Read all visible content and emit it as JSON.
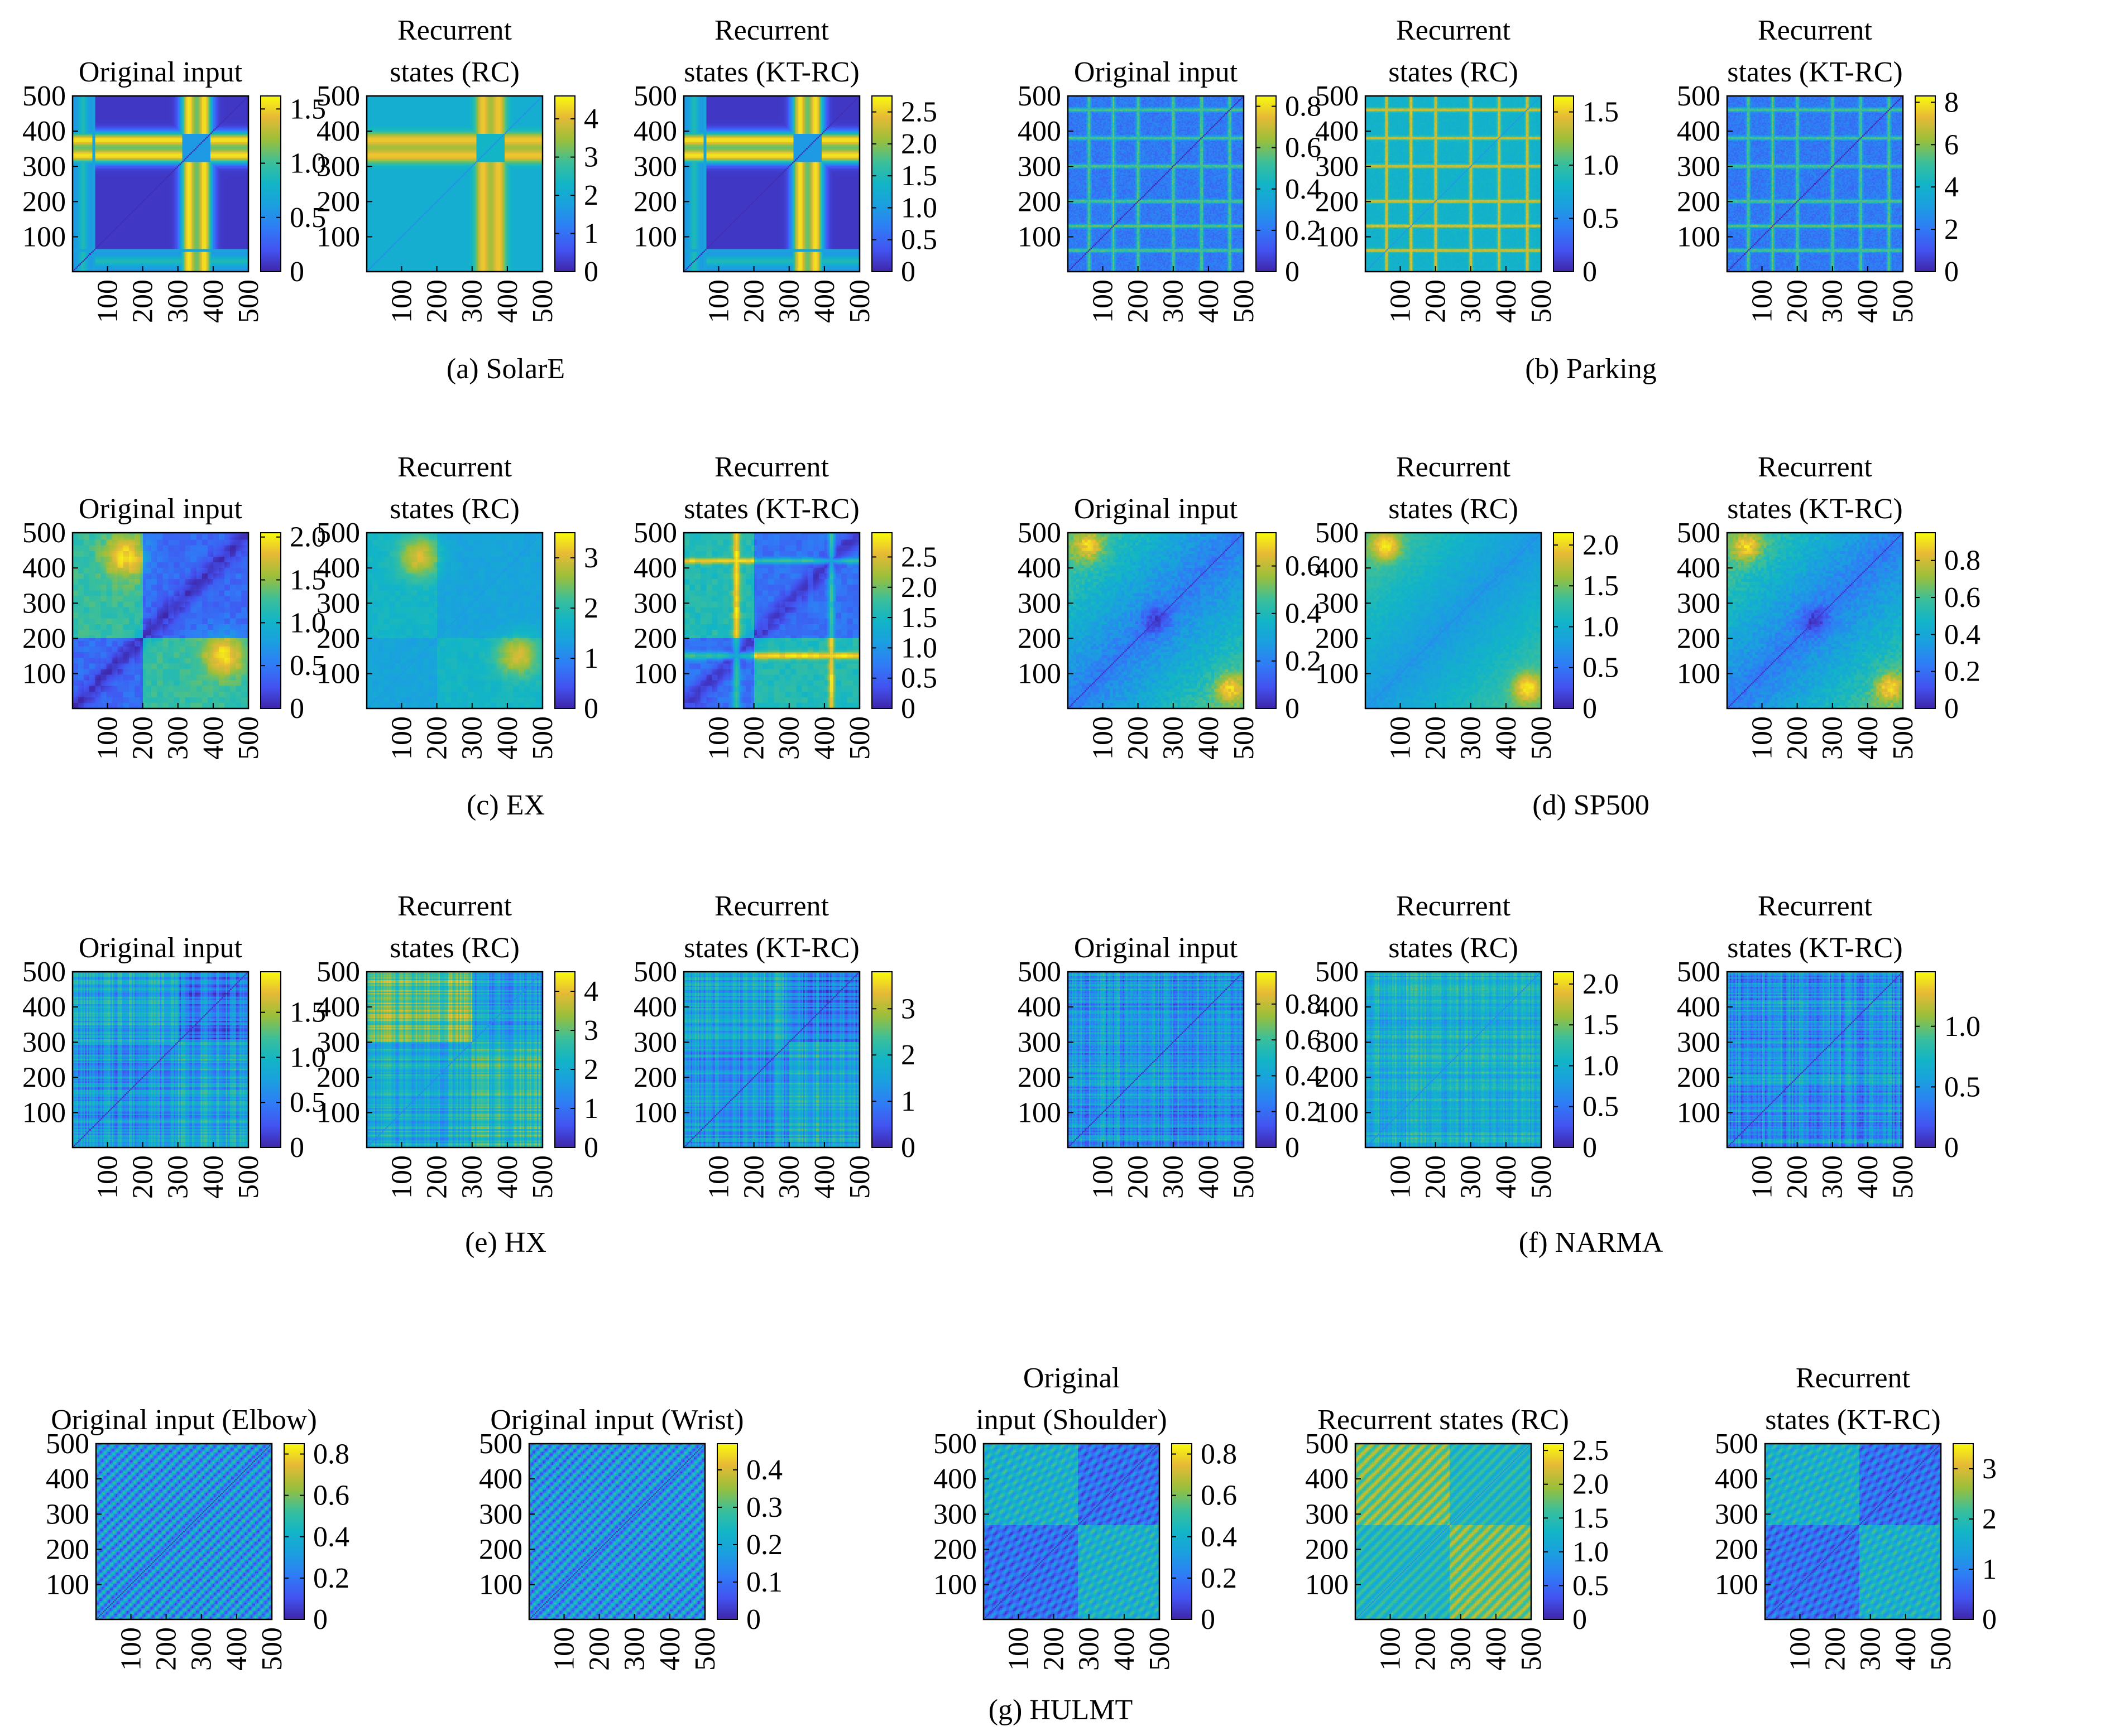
{
  "chart_data": {
    "type": "heatmap",
    "figure": "recurrence-plot-grid",
    "axis_ticks": [
      100,
      200,
      300,
      400,
      500
    ],
    "axis_range": [
      1,
      500
    ],
    "colormap": "parula",
    "groups": [
      {
        "caption": "(a) SolarE",
        "panels": [
          {
            "title_lines": [
              "Original input"
            ],
            "cbar_ticks": [
              "0",
              "0.5",
              "1.0",
              "1.5"
            ],
            "cbar_range": [
              0,
              1.62
            ],
            "pattern": "cross_low",
            "bands": [
              60,
              330,
              370
            ]
          },
          {
            "title_lines": [
              "Recurrent",
              "states (RC)"
            ],
            "cbar_ticks": [
              "0",
              "1",
              "2",
              "3",
              "4"
            ],
            "cbar_range": [
              0,
              4.6
            ],
            "pattern": "cross_mid",
            "bands": [
              60,
              330,
              370
            ]
          },
          {
            "title_lines": [
              "Recurrent",
              "states (KT-RC)"
            ],
            "cbar_ticks": [
              "0",
              "0.5",
              "1.0",
              "1.5",
              "2.0",
              "2.5"
            ],
            "cbar_range": [
              0,
              2.75
            ],
            "pattern": "cross_low",
            "bands": [
              60,
              330,
              370
            ]
          }
        ]
      },
      {
        "caption": "(b) Parking",
        "panels": [
          {
            "title_lines": [
              "Original input"
            ],
            "cbar_ticks": [
              "0",
              "0.2",
              "0.4",
              "0.6",
              "0.8"
            ],
            "cbar_range": [
              0,
              0.85
            ],
            "pattern": "grid_blue",
            "bands": [
              60,
              130,
              200,
              300,
              380,
              460
            ]
          },
          {
            "title_lines": [
              "Recurrent",
              "states (RC)"
            ],
            "cbar_ticks": [
              "0",
              "0.5",
              "1.0",
              "1.5"
            ],
            "cbar_range": [
              0,
              1.65
            ],
            "pattern": "grid_lines",
            "bands": [
              60,
              130,
              200,
              300,
              380,
              460
            ]
          },
          {
            "title_lines": [
              "Recurrent",
              "states (KT-RC)"
            ],
            "cbar_ticks": [
              "0",
              "2",
              "4",
              "6",
              "8"
            ],
            "cbar_range": [
              0,
              8.3
            ],
            "pattern": "grid_blue",
            "bands": [
              60,
              130,
              200,
              300,
              380,
              460
            ]
          }
        ]
      },
      {
        "caption": "(c) EX",
        "panels": [
          {
            "title_lines": [
              "Original input"
            ],
            "cbar_ticks": [
              "0",
              "0.5",
              "1.0",
              "1.5",
              "2.0"
            ],
            "cbar_range": [
              0,
              2.05
            ],
            "pattern": "smooth_block",
            "bands": [
              150
            ]
          },
          {
            "title_lines": [
              "Recurrent",
              "states (RC)"
            ],
            "cbar_ticks": [
              "0",
              "1",
              "2",
              "3"
            ],
            "cbar_range": [
              0,
              3.5
            ],
            "pattern": "smooth_soft",
            "bands": [
              150
            ]
          },
          {
            "title_lines": [
              "Recurrent",
              "states (KT-RC)"
            ],
            "cbar_ticks": [
              "0",
              "0.5",
              "1.0",
              "1.5",
              "2.0",
              "2.5"
            ],
            "cbar_range": [
              0,
              2.9
            ],
            "pattern": "smooth_lines",
            "bands": [
              150
            ]
          }
        ]
      },
      {
        "caption": "(d) SP500",
        "panels": [
          {
            "title_lines": [
              "Original input"
            ],
            "cbar_ticks": [
              "0",
              "0.2",
              "0.4",
              "0.6"
            ],
            "cbar_range": [
              0,
              0.74
            ],
            "pattern": "corner_texture",
            "bands": [
              200,
              300
            ]
          },
          {
            "title_lines": [
              "Recurrent",
              "states (RC)"
            ],
            "cbar_ticks": [
              "0",
              "0.5",
              "1.0",
              "1.5",
              "2.0"
            ],
            "cbar_range": [
              0,
              2.15
            ],
            "pattern": "corner_soft",
            "bands": [
              200,
              300
            ]
          },
          {
            "title_lines": [
              "Recurrent",
              "states (KT-RC)"
            ],
            "cbar_ticks": [
              "0",
              "0.2",
              "0.4",
              "0.6",
              "0.8"
            ],
            "cbar_range": [
              0,
              0.95
            ],
            "pattern": "corner_texture",
            "bands": [
              200,
              300
            ]
          }
        ]
      },
      {
        "caption": "(e) HX",
        "panels": [
          {
            "title_lines": [
              "Original input"
            ],
            "cbar_ticks": [
              "0",
              "0.5",
              "1.0",
              "1.5"
            ],
            "cbar_range": [
              0,
              1.95
            ],
            "pattern": "noise_blocks",
            "bands": [
              300
            ]
          },
          {
            "title_lines": [
              "Recurrent",
              "states (RC)"
            ],
            "cbar_ticks": [
              "0",
              "1",
              "2",
              "3",
              "4"
            ],
            "cbar_range": [
              0,
              4.5
            ],
            "pattern": "noise_blocks_bright",
            "bands": [
              300
            ]
          },
          {
            "title_lines": [
              "Recurrent",
              "states (KT-RC)"
            ],
            "cbar_ticks": [
              "0",
              "1",
              "2",
              "3"
            ],
            "cbar_range": [
              0,
              3.8
            ],
            "pattern": "noise_blocks",
            "bands": [
              300
            ]
          }
        ]
      },
      {
        "caption": "(f) NARMA",
        "panels": [
          {
            "title_lines": [
              "Original input"
            ],
            "cbar_ticks": [
              "0",
              "0.2",
              "0.4",
              "0.6",
              "0.8"
            ],
            "cbar_range": [
              0,
              0.98
            ],
            "pattern": "noise_fine",
            "bands": []
          },
          {
            "title_lines": [
              "Recurrent",
              "states (RC)"
            ],
            "cbar_ticks": [
              "0",
              "0.5",
              "1.0",
              "1.5",
              "2.0"
            ],
            "cbar_range": [
              0,
              2.15
            ],
            "pattern": "noise_fine_mid",
            "bands": []
          },
          {
            "title_lines": [
              "Recurrent",
              "states (KT-RC)"
            ],
            "cbar_ticks": [
              "0",
              "0.5",
              "1.0"
            ],
            "cbar_range": [
              0,
              1.45
            ],
            "pattern": "noise_fine",
            "bands": []
          }
        ]
      },
      {
        "caption": "(g) HULMT",
        "panels": [
          {
            "title_lines": [
              "Original input (Elbow)"
            ],
            "cbar_ticks": [
              "0",
              "0.2",
              "0.4",
              "0.6",
              "0.8"
            ],
            "cbar_range": [
              0,
              0.85
            ],
            "pattern": "periodic",
            "bands": []
          },
          {
            "title_lines": [
              "Original input (Wrist)"
            ],
            "cbar_ticks": [
              "0",
              "0.1",
              "0.2",
              "0.3",
              "0.4"
            ],
            "cbar_range": [
              0,
              0.47
            ],
            "pattern": "periodic",
            "bands": []
          },
          {
            "title_lines": [
              "Original",
              "input (Shoulder)"
            ],
            "cbar_ticks": [
              "0",
              "0.2",
              "0.4",
              "0.6",
              "0.8"
            ],
            "cbar_range": [
              0,
              0.85
            ],
            "pattern": "periodic_blocks",
            "bands": [
              270
            ]
          },
          {
            "title_lines": [
              "Recurrent states (RC)"
            ],
            "cbar_ticks": [
              "0",
              "0.5",
              "1.0",
              "1.5",
              "2.0",
              "2.5"
            ],
            "cbar_range": [
              0,
              2.6
            ],
            "pattern": "periodic_bright",
            "bands": [
              270
            ]
          },
          {
            "title_lines": [
              "Recurrent",
              "states (KT-RC)"
            ],
            "cbar_ticks": [
              "0",
              "1",
              "2",
              "3"
            ],
            "cbar_range": [
              0,
              3.5
            ],
            "pattern": "periodic_blocks",
            "bands": [
              270
            ]
          }
        ]
      }
    ]
  }
}
